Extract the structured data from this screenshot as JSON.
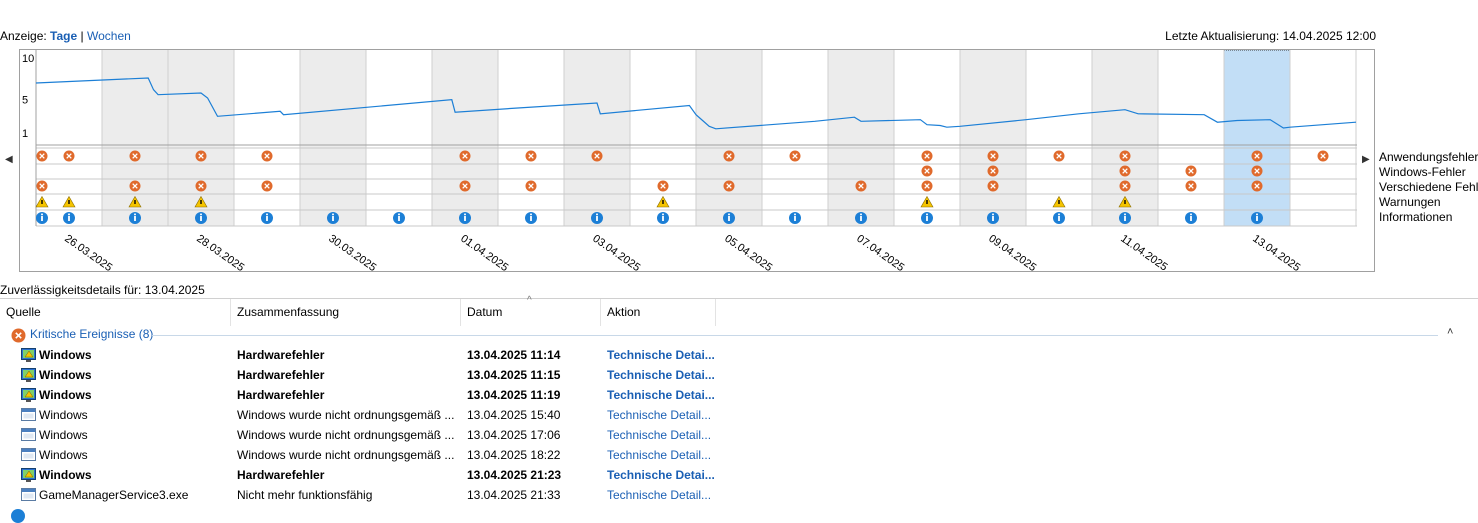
{
  "header": {
    "view_label": "Anzeige:",
    "view_days": "Tage",
    "view_separator": "|",
    "view_weeks": "Wochen",
    "last_update": "Letzte Aktualisierung: 14.04.2025 12:00"
  },
  "chart_data": {
    "type": "line",
    "y_ticks": [
      "10",
      "5",
      "1"
    ],
    "ylim": [
      1,
      10
    ],
    "columns": 20,
    "selected_column": 18,
    "shaded_columns": [
      1,
      2,
      4,
      6,
      8,
      10,
      12,
      14,
      16
    ],
    "x_labels": [
      {
        "col": 0,
        "text": "26.03.2025"
      },
      {
        "col": 2,
        "text": "28.03.2025"
      },
      {
        "col": 4,
        "text": "30.03.2025"
      },
      {
        "col": 6,
        "text": "01.04.2025"
      },
      {
        "col": 8,
        "text": "03.04.2025"
      },
      {
        "col": 10,
        "text": "05.04.2025"
      },
      {
        "col": 12,
        "text": "07.04.2025"
      },
      {
        "col": 14,
        "text": "09.04.2025"
      },
      {
        "col": 16,
        "text": "11.04.2025"
      },
      {
        "col": 18,
        "text": "13.04.2025"
      }
    ],
    "stability_index": [
      [
        0.0,
        7.0
      ],
      [
        1.7,
        7.6
      ],
      [
        1.78,
        6.2
      ],
      [
        1.85,
        5.6
      ],
      [
        2.5,
        5.8
      ],
      [
        2.6,
        5.2
      ],
      [
        2.75,
        3.0
      ],
      [
        3.7,
        3.6
      ],
      [
        3.75,
        3.2
      ],
      [
        6.3,
        5.0
      ],
      [
        6.35,
        3.5
      ],
      [
        7.3,
        4.0
      ],
      [
        8.5,
        4.6
      ],
      [
        8.55,
        3.3
      ],
      [
        9.9,
        4.3
      ],
      [
        10.0,
        3.2
      ],
      [
        10.1,
        2.5
      ],
      [
        10.2,
        1.8
      ],
      [
        10.3,
        1.5
      ],
      [
        11.8,
        2.4
      ],
      [
        12.4,
        2.9
      ],
      [
        12.5,
        2.4
      ],
      [
        13.4,
        2.6
      ],
      [
        13.5,
        2.0
      ],
      [
        13.7,
        1.9
      ],
      [
        13.8,
        1.7
      ],
      [
        14.0,
        1.8
      ],
      [
        15.0,
        2.6
      ],
      [
        15.8,
        3.3
      ],
      [
        16.5,
        3.8
      ],
      [
        16.7,
        3.3
      ],
      [
        17.7,
        3.2
      ],
      [
        17.9,
        2.3
      ],
      [
        18.2,
        2.5
      ],
      [
        18.7,
        2.6
      ],
      [
        18.9,
        1.6
      ],
      [
        19.0,
        1.7
      ],
      [
        20.0,
        2.3
      ]
    ],
    "rows": [
      {
        "name": "Anwendungsfehler",
        "icon": "error",
        "cols": [
          0,
          0.5,
          1.5,
          2.5,
          3.5,
          6.5,
          7.5,
          8.5,
          10.5,
          11.5,
          13.5,
          14.5,
          15.5,
          16.5,
          18.5,
          19.5
        ]
      },
      {
        "name": "Windows-Fehler",
        "icon": "error",
        "cols": [
          13.5,
          14.5,
          16.5,
          17.5,
          18.5
        ]
      },
      {
        "name": "Verschiedene Fehler",
        "icon": "error",
        "cols": [
          0,
          1.5,
          2.5,
          3.5,
          6.5,
          7.5,
          9.5,
          10.5,
          12.5,
          13.5,
          14.5,
          16.5,
          17.5,
          18.5
        ]
      },
      {
        "name": "Warnungen",
        "icon": "warning",
        "cols": [
          0,
          0.5,
          1.5,
          2.5,
          9.5,
          13.5,
          15.5,
          16.5
        ]
      },
      {
        "name": "Informationen",
        "icon": "info",
        "cols": [
          0,
          0.5,
          1.5,
          2.5,
          3.5,
          4.5,
          5.5,
          6.5,
          7.5,
          8.5,
          9.5,
          10.5,
          11.5,
          12.5,
          13.5,
          14.5,
          15.5,
          16.5,
          17.5,
          18.5
        ]
      }
    ],
    "colors": {
      "line": "#1c7fd6",
      "selected": "#c2def6",
      "shaded": "#ececec",
      "error": "#e06a2c",
      "warning": "#f5c400",
      "info": "#1c7fd6"
    }
  },
  "legend": [
    "Anwendungsfehler",
    "Windows-Fehler",
    "Verschiedene Fehler",
    "Warnungen",
    "Informationen"
  ],
  "details": {
    "title": "Zuverlässigkeitsdetails für: 13.04.2025",
    "columns": [
      "Quelle",
      "Zusammenfassung",
      "Datum",
      "Aktion"
    ],
    "group_label": "Kritische Ereignisse (8)",
    "rows": [
      {
        "source": "Windows",
        "summary": "Hardwarefehler",
        "date": "13.04.2025 11:14",
        "action": "Technische Detai...",
        "bold": true,
        "icon": "monitor-error-icon"
      },
      {
        "source": "Windows",
        "summary": "Hardwarefehler",
        "date": "13.04.2025 11:15",
        "action": "Technische Detai...",
        "bold": true,
        "icon": "monitor-error-icon"
      },
      {
        "source": "Windows",
        "summary": "Hardwarefehler",
        "date": "13.04.2025 11:19",
        "action": "Technische Detai...",
        "bold": true,
        "icon": "monitor-error-icon"
      },
      {
        "source": "Windows",
        "summary": "Windows wurde nicht ordnungsgemäß ...",
        "date": "13.04.2025 15:40",
        "action": "Technische Detail...",
        "bold": false,
        "icon": "window-icon"
      },
      {
        "source": "Windows",
        "summary": "Windows wurde nicht ordnungsgemäß ...",
        "date": "13.04.2025 17:06",
        "action": "Technische Detail...",
        "bold": false,
        "icon": "window-icon"
      },
      {
        "source": "Windows",
        "summary": "Windows wurde nicht ordnungsgemäß ...",
        "date": "13.04.2025 18:22",
        "action": "Technische Detail...",
        "bold": false,
        "icon": "window-icon"
      },
      {
        "source": "Windows",
        "summary": "Hardwarefehler",
        "date": "13.04.2025 21:23",
        "action": "Technische Detai...",
        "bold": true,
        "icon": "monitor-error-icon"
      },
      {
        "source": "GameManagerService3.exe",
        "summary": "Nicht mehr funktionsfähig",
        "date": "13.04.2025 21:33",
        "action": "Technische Detail...",
        "bold": false,
        "icon": "window-icon"
      }
    ]
  }
}
